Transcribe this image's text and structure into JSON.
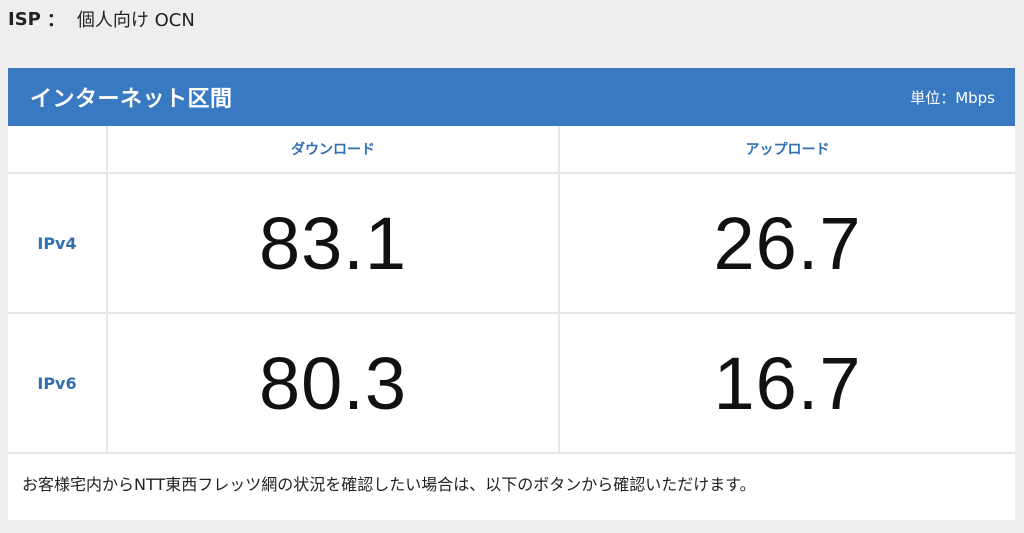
{
  "isp": {
    "label": "ISP",
    "separator": "：",
    "value": "個人向け OCN"
  },
  "panel": {
    "title": "インターネット区間",
    "unit": "単位：Mbps",
    "header_color": "#3979c2",
    "columns": [
      "ダウンロード",
      "アップロード"
    ],
    "rows": [
      {
        "label": "IPv4",
        "download": "83.1",
        "upload": "26.7"
      },
      {
        "label": "IPv6",
        "download": "80.3",
        "upload": "16.7"
      }
    ],
    "note": "お客様宅内からNTT東西フレッツ網の状況を確認したい場合は、以下のボタンから確認いただけます。"
  }
}
